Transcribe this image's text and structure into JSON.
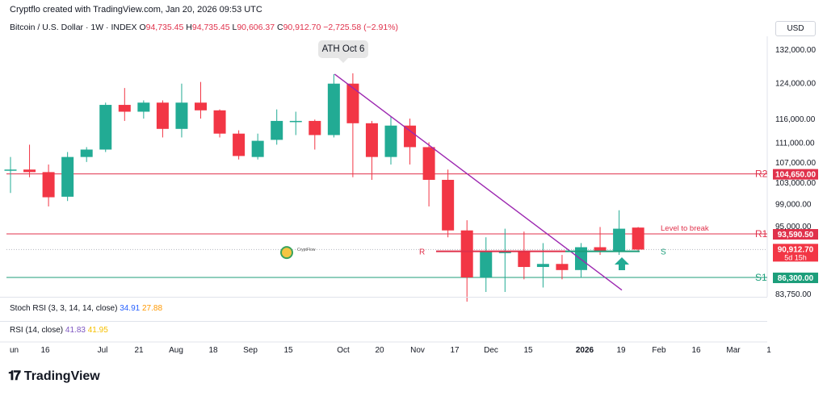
{
  "header": {
    "credit": "Cryptflo created with TradingView.com, Jan 20, 2026 09:53 UTC",
    "symbol": "Bitcoin / U.S. Dollar · 1W · INDEX",
    "ohlc": {
      "o_label": "O",
      "o": "94,735.45",
      "h_label": "H",
      "h": "94,735.45",
      "l_label": "L",
      "l": "90,606.37",
      "c_label": "C",
      "c": "90,912.70",
      "change": "−2,725.58 (−2.91%)"
    },
    "currency": "USD"
  },
  "colors": {
    "up": "#22ab94",
    "down": "#f23645",
    "trendline": "#9c27b0",
    "resistance": "#e0314b",
    "support": "#1c9e7a",
    "text": "#131722"
  },
  "chart_data": {
    "type": "candlestick",
    "title": "Bitcoin / U.S. Dollar · 1W · INDEX",
    "y_axis": {
      "scale": "log",
      "ticks": [
        "132,000.00",
        "124,000.00",
        "116,000.00",
        "111,000.00",
        "107,000.00",
        "103,000.00",
        "99,000.00",
        "95,000.00",
        "83,750.00"
      ],
      "tick_values": [
        132000,
        124000,
        116000,
        111000,
        107000,
        103000,
        99000,
        95000,
        83750
      ],
      "ylim": [
        82500,
        140000
      ]
    },
    "x_axis": {
      "ticks": [
        "un",
        "16",
        "Jul",
        "21",
        "Aug",
        "18",
        "Sep",
        "15",
        "Oct",
        "20",
        "Nov",
        "17",
        "Dec",
        "15",
        "2026",
        "19",
        "Feb",
        "16",
        "Mar",
        "1"
      ]
    },
    "candles": [
      {
        "o": 105500,
        "h": 108000,
        "l": 101000,
        "c": 105500
      },
      {
        "o": 105500,
        "h": 110500,
        "l": 104000,
        "c": 105000
      },
      {
        "o": 105000,
        "h": 106500,
        "l": 98500,
        "c": 100200
      },
      {
        "o": 100300,
        "h": 109000,
        "l": 99500,
        "c": 108000
      },
      {
        "o": 108000,
        "h": 110000,
        "l": 107000,
        "c": 109500
      },
      {
        "o": 109500,
        "h": 119500,
        "l": 109000,
        "c": 119000
      },
      {
        "o": 119000,
        "h": 122800,
        "l": 115500,
        "c": 117500
      },
      {
        "o": 117500,
        "h": 120000,
        "l": 116000,
        "c": 119500
      },
      {
        "o": 119500,
        "h": 120000,
        "l": 112000,
        "c": 113800
      },
      {
        "o": 113800,
        "h": 123800,
        "l": 112000,
        "c": 119500
      },
      {
        "o": 119500,
        "h": 124200,
        "l": 116000,
        "c": 117800
      },
      {
        "o": 117800,
        "h": 118000,
        "l": 112000,
        "c": 112800
      },
      {
        "o": 112800,
        "h": 113500,
        "l": 107500,
        "c": 108200
      },
      {
        "o": 108000,
        "h": 112800,
        "l": 107500,
        "c": 111300
      },
      {
        "o": 111500,
        "h": 118000,
        "l": 110500,
        "c": 115500
      },
      {
        "o": 115500,
        "h": 117500,
        "l": 112500,
        "c": 115500
      },
      {
        "o": 115500,
        "h": 115800,
        "l": 109500,
        "c": 112500
      },
      {
        "o": 112500,
        "h": 126000,
        "l": 112000,
        "c": 123800
      },
      {
        "o": 123800,
        "h": 126200,
        "l": 104000,
        "c": 115000
      },
      {
        "o": 115000,
        "h": 115500,
        "l": 103500,
        "c": 108000
      },
      {
        "o": 108000,
        "h": 116500,
        "l": 106500,
        "c": 114500
      },
      {
        "o": 114500,
        "h": 116000,
        "l": 106500,
        "c": 110000
      },
      {
        "o": 110000,
        "h": 111000,
        "l": 98500,
        "c": 103500
      },
      {
        "o": 103500,
        "h": 105500,
        "l": 93000,
        "c": 94200
      },
      {
        "o": 94200,
        "h": 96000,
        "l": 82500,
        "c": 86300
      },
      {
        "o": 86300,
        "h": 93000,
        "l": 84000,
        "c": 90500
      },
      {
        "o": 90500,
        "h": 94500,
        "l": 84000,
        "c": 90500
      },
      {
        "o": 90500,
        "h": 94000,
        "l": 86000,
        "c": 88000
      },
      {
        "o": 88000,
        "h": 92000,
        "l": 84700,
        "c": 88500
      },
      {
        "o": 88500,
        "h": 90000,
        "l": 86000,
        "c": 87500
      },
      {
        "o": 87500,
        "h": 92000,
        "l": 86300,
        "c": 91300
      },
      {
        "o": 91300,
        "h": 94800,
        "l": 90000,
        "c": 90500
      },
      {
        "o": 90500,
        "h": 97800,
        "l": 90000,
        "c": 94500
      },
      {
        "o": 94700,
        "h": 94800,
        "l": 90600,
        "c": 90900
      }
    ],
    "levels": [
      {
        "id": "R2",
        "value": 104650,
        "label": "R2",
        "price_label": "104,650.00",
        "color": "#e0314b"
      },
      {
        "id": "R1",
        "value": 93590.5,
        "label": "R1",
        "price_label": "93,590.50",
        "color": "#e0314b"
      },
      {
        "id": "S1",
        "value": 86300,
        "label": "S1",
        "price_label": "86,300.00",
        "color": "#1c9e7a"
      }
    ],
    "current_price": {
      "value": 90912.7,
      "label": "90,912.70",
      "countdown": "5d 15h"
    },
    "annotations": {
      "ath": "ATH Oct 6",
      "level_to_break": "Level to break",
      "r_marker": "R",
      "s_marker": "S",
      "watermark": "CryptFlow"
    }
  },
  "indicators": {
    "stoch": {
      "label": "Stoch RSI (3, 3, 14, 14, close)",
      "k": "34.91",
      "d": "27.88"
    },
    "rsi": {
      "label": "RSI (14, close)",
      "value": "41.83",
      "ma": "41.95"
    }
  },
  "footer": {
    "brand": "TradingView"
  }
}
